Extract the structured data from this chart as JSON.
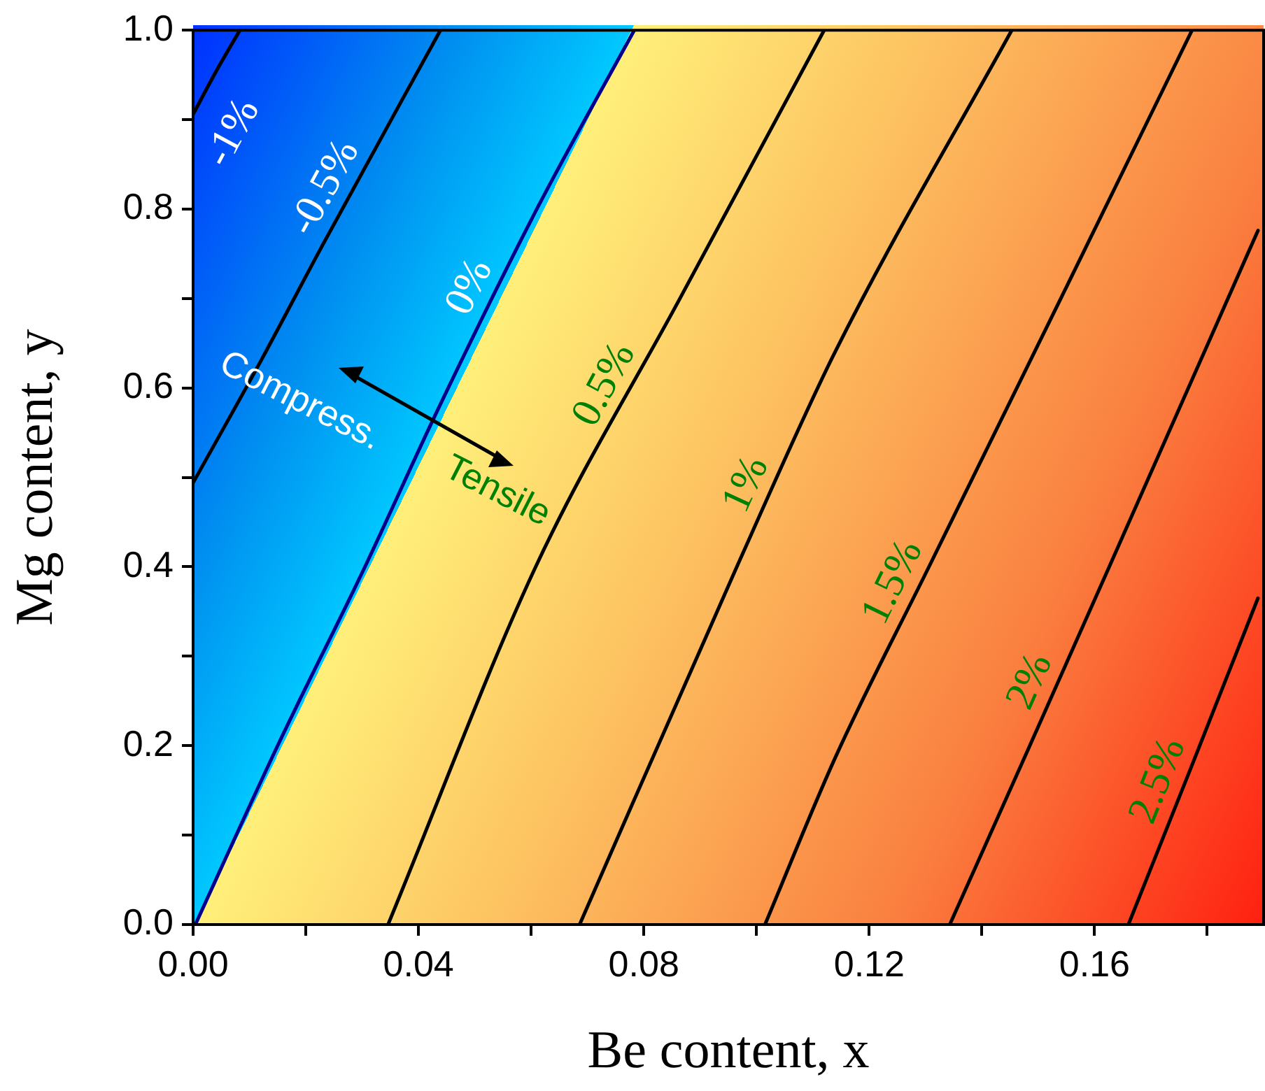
{
  "chart_data": {
    "type": "line",
    "xlabel": "Be content, x",
    "ylabel": "Mg content, y",
    "legend": false,
    "grid": false,
    "marker": "none",
    "line_style": "solid",
    "xlim": [
      0,
      0.19
    ],
    "ylim": [
      0,
      1
    ],
    "xticks": [
      {
        "value": 0,
        "label": "0.00"
      },
      {
        "value": 0.02,
        "label": null
      },
      {
        "value": 0.04,
        "label": "0.04"
      },
      {
        "value": 0.06,
        "label": null
      },
      {
        "value": 0.08,
        "label": "0.08"
      },
      {
        "value": 0.1,
        "label": null
      },
      {
        "value": 0.12,
        "label": "0.12"
      },
      {
        "value": 0.14,
        "label": null
      },
      {
        "value": 0.16,
        "label": "0.16"
      },
      {
        "value": 0.18,
        "label": null
      }
    ],
    "yticks": [
      {
        "value": 0,
        "label": "0.0"
      },
      {
        "value": 0.1,
        "label": null
      },
      {
        "value": 0.2,
        "label": "0.2"
      },
      {
        "value": 0.3,
        "label": null
      },
      {
        "value": 0.4,
        "label": "0.4"
      },
      {
        "value": 0.5,
        "label": null
      },
      {
        "value": 0.6,
        "label": "0.6"
      },
      {
        "value": 0.7,
        "label": null
      },
      {
        "value": 0.8,
        "label": "0.8"
      },
      {
        "value": 0.9,
        "label": null
      },
      {
        "value": 1,
        "label": "1.0"
      }
    ],
    "series": [
      {
        "name": "-1%",
        "color": "#000000",
        "x": [
          0,
          0.004,
          0.0083
        ],
        "values": [
          0.906,
          0.953,
          1.0
        ]
      },
      {
        "name": "-0.5%",
        "color": "#000000",
        "x": [
          0,
          0.012,
          0.023,
          0.0439
        ],
        "values": [
          0.494,
          0.63,
          0.76,
          1.0
        ]
      },
      {
        "name": "0%",
        "color": "#00008b",
        "x": [
          0.0004,
          0.015,
          0.0305,
          0.043,
          0.061,
          0.0783
        ],
        "values": [
          0,
          0.2,
          0.4,
          0.57,
          0.8,
          1.0
        ]
      },
      {
        "name": "0.5%",
        "color": "#000000",
        "x": [
          0.0346,
          0.0608,
          0.0864,
          0.112
        ],
        "values": [
          0,
          0.4,
          0.7,
          1.0
        ]
      },
      {
        "name": "1%",
        "color": "#000000",
        "x": [
          0.0686,
          0.0965,
          0.114,
          0.1453
        ],
        "values": [
          0,
          0.4,
          0.641,
          1.0
        ]
      },
      {
        "name": "1.5%",
        "color": "#000000",
        "x": [
          0.1015,
          0.114,
          0.1306,
          0.154,
          0.1773
        ],
        "values": [
          0,
          0.187,
          0.4,
          0.7,
          1.0
        ]
      },
      {
        "name": "2%",
        "color": "#000000",
        "x": [
          0.1343,
          0.1485,
          0.1626,
          0.189
        ],
        "values": [
          0,
          0.2,
          0.4,
          0.776
        ]
      },
      {
        "name": "2.5%",
        "color": "#000000",
        "x": [
          0.166,
          0.1774,
          0.189
        ],
        "values": [
          0,
          0.18,
          0.365
        ]
      }
    ],
    "annotations": [
      "Compress.",
      "Tensile"
    ]
  }
}
